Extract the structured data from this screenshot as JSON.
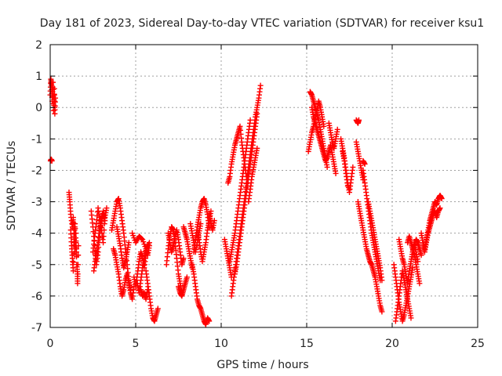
{
  "chart_data": {
    "type": "scatter",
    "title": "Day 181 of 2023, Sidereal Day-to-day VTEC variation (SDTVAR) for receiver ksu1",
    "xlabel": "GPS time / hours",
    "ylabel": "SDTVAR / TECUs",
    "xlim": [
      0,
      25
    ],
    "ylim": [
      -7,
      2
    ],
    "xticks": [
      "0",
      "5",
      "10",
      "15",
      "20",
      "25"
    ],
    "yticks": [
      "2",
      "1",
      "0",
      "-1",
      "-2",
      "-3",
      "-4",
      "-5",
      "-6",
      "-7"
    ],
    "grid": true,
    "marker": "+",
    "color": "#ff0000",
    "series": [
      {
        "name": "t0",
        "x": [
          0.0,
          0.04,
          0.08,
          0.12,
          0.16,
          0.2,
          0.24,
          0.27,
          0.3
        ],
        "y": [
          0.4,
          0.9,
          0.7,
          0.2,
          0.8,
          -0.1,
          0.6,
          -0.2,
          0.3
        ]
      },
      {
        "name": "t0b",
        "x": [
          0.02,
          0.06,
          0.1
        ],
        "y": [
          -1.7,
          -1.65,
          -1.7
        ]
      },
      {
        "name": "s1",
        "x": [
          1.1,
          1.15,
          1.2,
          1.3,
          1.35,
          1.4,
          1.45,
          1.5,
          1.55,
          1.6,
          1.6,
          1.65
        ],
        "y": [
          -2.7,
          -3.0,
          -3.4,
          -3.8,
          -3.5,
          -4.2,
          -4.6,
          -4.0,
          -5.0,
          -5.3,
          -5.6,
          -4.4
        ]
      },
      {
        "name": "s1b",
        "x": [
          1.2,
          1.25,
          1.3,
          1.35,
          1.4,
          1.45,
          1.5,
          1.55
        ],
        "y": [
          -3.9,
          -4.4,
          -4.8,
          -5.2,
          -4.1,
          -3.7,
          -4.3,
          -4.7
        ]
      },
      {
        "name": "s2",
        "x": [
          2.4,
          2.5,
          2.6,
          2.7,
          2.8,
          2.9,
          3.0,
          3.1,
          3.2
        ],
        "y": [
          -3.3,
          -3.8,
          -4.4,
          -5.0,
          -4.6,
          -4.0,
          -3.6,
          -3.3,
          -3.6
        ]
      },
      {
        "name": "s2b",
        "x": [
          2.5,
          2.6,
          2.7,
          2.8,
          2.9,
          3.0,
          3.1,
          3.2,
          3.3
        ],
        "y": [
          -4.6,
          -4.1,
          -3.7,
          -3.2,
          -3.6,
          -3.9,
          -4.3,
          -3.5,
          -3.2
        ]
      },
      {
        "name": "s2c",
        "x": [
          2.55,
          2.65,
          2.75,
          2.85,
          2.95,
          3.05
        ],
        "y": [
          -5.2,
          -4.8,
          -4.5,
          -4.0,
          -3.7,
          -3.4
        ]
      },
      {
        "name": "s3",
        "x": [
          3.6,
          3.7,
          3.8,
          3.9,
          4.0,
          4.1,
          4.2,
          4.3,
          4.4,
          4.5,
          4.6,
          4.7
        ],
        "y": [
          -3.9,
          -3.6,
          -3.3,
          -3.0,
          -2.9,
          -3.2,
          -3.6,
          -4.0,
          -4.5,
          -5.0,
          -5.5,
          -5.8
        ]
      },
      {
        "name": "s3b",
        "x": [
          3.7,
          3.8,
          3.9,
          4.0,
          4.1,
          4.2,
          4.3,
          4.4,
          4.5,
          4.6,
          4.7,
          4.8,
          4.9
        ],
        "y": [
          -4.5,
          -4.7,
          -5.0,
          -5.3,
          -5.7,
          -6.0,
          -5.8,
          -5.5,
          -5.3,
          -5.6,
          -5.9,
          -6.1,
          -5.7
        ]
      },
      {
        "name": "s3c",
        "x": [
          3.9,
          4.0,
          4.1,
          4.2,
          4.3,
          4.4,
          4.5,
          4.6
        ],
        "y": [
          -3.8,
          -4.1,
          -4.4,
          -4.8,
          -5.1,
          -4.9,
          -4.6,
          -4.3
        ]
      },
      {
        "name": "s4",
        "x": [
          4.8,
          5.0,
          5.2,
          5.4,
          5.6,
          5.8
        ],
        "y": [
          -4.0,
          -4.3,
          -4.1,
          -4.2,
          -4.5,
          -4.3
        ]
      },
      {
        "name": "s4b",
        "x": [
          4.9,
          5.0,
          5.1,
          5.2,
          5.3,
          5.4,
          5.5,
          5.6,
          5.7
        ],
        "y": [
          -5.4,
          -5.7,
          -5.3,
          -4.9,
          -4.6,
          -4.8,
          -5.1,
          -4.7,
          -4.4
        ]
      },
      {
        "name": "s4c",
        "x": [
          5.1,
          5.2,
          5.3,
          5.4,
          5.5,
          5.6,
          5.7,
          5.8
        ],
        "y": [
          -5.6,
          -5.9,
          -5.5,
          -5.1,
          -4.8,
          -4.5,
          -4.7,
          -4.4
        ]
      },
      {
        "name": "s5",
        "x": [
          5.6,
          5.7,
          5.8,
          5.9,
          6.0,
          6.1,
          6.2,
          6.3
        ],
        "y": [
          -5.2,
          -5.6,
          -6.0,
          -6.4,
          -6.7,
          -6.8,
          -6.6,
          -6.4
        ]
      },
      {
        "name": "s5b",
        "x": [
          5.3,
          5.4,
          5.5,
          5.6,
          5.7
        ],
        "y": [
          -5.8,
          -6.0,
          -5.9,
          -6.1,
          -5.8
        ]
      },
      {
        "name": "s6",
        "x": [
          6.8,
          6.9,
          7.0,
          7.1,
          7.2,
          7.3,
          7.4,
          7.5,
          7.6,
          7.7
        ],
        "y": [
          -5.0,
          -4.5,
          -4.1,
          -3.8,
          -3.9,
          -4.3,
          -4.8,
          -5.3,
          -5.6,
          -5.9
        ]
      },
      {
        "name": "s6b",
        "x": [
          6.9,
          7.0,
          7.1,
          7.2,
          7.3,
          7.4,
          7.5,
          7.6,
          7.7,
          7.8
        ],
        "y": [
          -4.0,
          -4.3,
          -4.6,
          -4.4,
          -4.1,
          -3.9,
          -4.2,
          -4.6,
          -5.0,
          -4.8
        ]
      },
      {
        "name": "s6c",
        "x": [
          7.8,
          7.9,
          8.0,
          8.1,
          8.2,
          8.3
        ],
        "y": [
          -3.8,
          -4.0,
          -4.2,
          -4.5,
          -4.8,
          -5.1
        ]
      },
      {
        "name": "s6d",
        "x": [
          7.5,
          7.6,
          7.7,
          7.8,
          7.9,
          8.0
        ],
        "y": [
          -5.7,
          -5.9,
          -6.0,
          -5.8,
          -5.6,
          -5.4
        ]
      },
      {
        "name": "s7",
        "x": [
          8.4,
          8.5,
          8.6,
          8.7,
          8.8,
          8.9,
          9.0,
          9.1,
          9.2,
          9.3
        ],
        "y": [
          -4.6,
          -4.2,
          -3.8,
          -3.5,
          -3.2,
          -3.0,
          -2.9,
          -3.1,
          -3.4,
          -3.8
        ]
      },
      {
        "name": "s7b",
        "x": [
          8.6,
          8.7,
          8.8,
          8.9,
          9.0,
          9.1,
          9.2,
          9.3,
          9.4
        ],
        "y": [
          -3.9,
          -4.2,
          -4.6,
          -4.9,
          -4.6,
          -4.3,
          -3.9,
          -3.6,
          -3.3
        ]
      },
      {
        "name": "s7c",
        "x": [
          8.2,
          8.3,
          8.4,
          8.5,
          8.6,
          8.7,
          8.8
        ],
        "y": [
          -3.7,
          -4.0,
          -4.3,
          -4.6,
          -4.3,
          -4.0,
          -3.7
        ]
      },
      {
        "name": "s8",
        "x": [
          8.3,
          8.4,
          8.5,
          8.6,
          8.7,
          8.8,
          8.9,
          9.0,
          9.1,
          9.2,
          9.3
        ],
        "y": [
          -5.0,
          -5.3,
          -5.7,
          -6.1,
          -6.3,
          -6.4,
          -6.6,
          -6.8,
          -6.9,
          -6.7,
          -6.8
        ]
      },
      {
        "name": "s8b",
        "x": [
          9.3,
          9.4,
          9.5,
          9.6
        ],
        "y": [
          -3.4,
          -3.7,
          -3.9,
          -3.6
        ]
      },
      {
        "name": "s9",
        "x": [
          10.4,
          10.5,
          10.6,
          10.7,
          10.8,
          10.9,
          11.0,
          11.1,
          11.2,
          11.3,
          11.4,
          11.5
        ],
        "y": [
          -2.4,
          -2.2,
          -1.8,
          -1.5,
          -1.2,
          -1.0,
          -0.8,
          -0.6,
          -1.1,
          -1.5,
          -1.9,
          -2.3
        ]
      },
      {
        "name": "s9b",
        "x": [
          10.5,
          10.6,
          10.7,
          10.8,
          10.9,
          11.0,
          11.1,
          11.2,
          11.3,
          11.4,
          11.5,
          11.6,
          11.7
        ],
        "y": [
          -4.9,
          -4.6,
          -4.3,
          -4.0,
          -3.6,
          -3.2,
          -2.8,
          -2.4,
          -2.0,
          -1.6,
          -1.2,
          -0.8,
          -0.4
        ]
      },
      {
        "name": "s9c",
        "x": [
          10.6,
          10.7,
          10.8,
          10.9,
          11.0,
          11.1,
          11.2,
          11.3,
          11.4,
          11.5,
          11.6,
          11.7,
          11.8,
          11.9,
          12.0,
          12.1,
          12.2,
          12.3
        ],
        "y": [
          -6.0,
          -5.6,
          -5.2,
          -4.8,
          -4.4,
          -4.0,
          -3.6,
          -3.2,
          -2.8,
          -2.3,
          -1.9,
          -1.5,
          -1.1,
          -0.7,
          -0.3,
          0.0,
          0.3,
          0.7
        ]
      },
      {
        "name": "s9d",
        "x": [
          10.8,
          10.9,
          11.0,
          11.1,
          11.2,
          11.3,
          11.4,
          11.5,
          11.6,
          11.7,
          11.8,
          11.9,
          12.0,
          12.1
        ],
        "y": [
          -5.3,
          -5.0,
          -4.6,
          -4.2,
          -3.8,
          -3.4,
          -3.0,
          -2.6,
          -2.2,
          -1.8,
          -1.4,
          -1.0,
          -0.6,
          -0.2
        ]
      },
      {
        "name": "s9e",
        "x": [
          11.6,
          11.7,
          11.8,
          11.9,
          12.0,
          12.1
        ],
        "y": [
          -3.0,
          -2.6,
          -2.2,
          -1.9,
          -1.6,
          -1.3
        ]
      },
      {
        "name": "s9f",
        "x": [
          10.2,
          10.3,
          10.4,
          10.5,
          10.6
        ],
        "y": [
          -4.2,
          -4.5,
          -4.8,
          -5.1,
          -5.4
        ]
      },
      {
        "name": "s10",
        "x": [
          15.2,
          15.3,
          15.4,
          15.5,
          15.6,
          15.7,
          15.8,
          15.9,
          16.0,
          16.1,
          16.2
        ],
        "y": [
          0.5,
          0.4,
          0.2,
          0.0,
          -0.2,
          -0.4,
          -0.7,
          -1.0,
          -1.3,
          -1.6,
          -1.9
        ]
      },
      {
        "name": "s10b",
        "x": [
          15.3,
          15.4,
          15.5,
          15.6,
          15.7,
          15.8,
          15.9,
          16.0,
          16.1,
          16.2,
          16.3,
          16.4,
          16.5,
          16.6,
          16.7
        ],
        "y": [
          0.0,
          -0.3,
          -0.5,
          -0.7,
          -0.9,
          -1.1,
          -1.3,
          -1.5,
          -1.7,
          -1.6,
          -1.4,
          -1.2,
          -1.5,
          -1.8,
          -2.1
        ]
      },
      {
        "name": "s10c",
        "x": [
          15.1,
          15.2,
          15.3,
          15.4,
          15.5,
          15.6,
          15.7,
          15.8,
          15.9,
          16.0
        ],
        "y": [
          -1.4,
          -1.1,
          -0.8,
          -0.6,
          -0.3,
          -0.1,
          0.2,
          0.0,
          -0.3,
          -0.6
        ]
      },
      {
        "name": "s10d",
        "x": [
          16.3,
          16.4,
          16.5,
          16.6,
          16.7,
          16.8
        ],
        "y": [
          -0.5,
          -0.8,
          -1.1,
          -1.3,
          -1.0,
          -0.7
        ]
      },
      {
        "name": "s11",
        "x": [
          17.0,
          17.1,
          17.2,
          17.3,
          17.4,
          17.5,
          17.6,
          17.7
        ],
        "y": [
          -1.0,
          -1.3,
          -1.6,
          -2.0,
          -2.4,
          -2.7,
          -2.3,
          -1.9
        ]
      },
      {
        "name": "s11b",
        "x": [
          17.1,
          17.2,
          17.3,
          17.4
        ],
        "y": [
          -1.4,
          -1.7,
          -2.1,
          -2.5
        ]
      },
      {
        "name": "s11c",
        "x": [
          17.9,
          18.0,
          18.05
        ],
        "y": [
          -0.4,
          -0.5,
          -0.4
        ]
      },
      {
        "name": "s11d",
        "x": [
          17.9,
          18.0,
          18.1,
          18.2,
          18.3
        ],
        "y": [
          -1.1,
          -1.4,
          -1.7,
          -2.0,
          -2.3
        ]
      },
      {
        "name": "s12",
        "x": [
          18.0,
          18.1,
          18.2,
          18.3,
          18.4,
          18.5,
          18.6,
          18.7,
          18.8,
          18.9,
          19.0,
          19.1,
          19.2,
          19.3,
          19.4
        ],
        "y": [
          -3.0,
          -3.3,
          -3.6,
          -3.9,
          -4.2,
          -4.5,
          -4.7,
          -4.9,
          -5.0,
          -5.2,
          -5.4,
          -5.7,
          -6.0,
          -6.3,
          -6.5
        ]
      },
      {
        "name": "s12b",
        "x": [
          18.3,
          18.4,
          18.5,
          18.6,
          18.7,
          18.8,
          18.9,
          19.0,
          19.1,
          19.2,
          19.3
        ],
        "y": [
          -2.0,
          -2.4,
          -2.8,
          -3.2,
          -3.6,
          -4.0,
          -4.3,
          -4.6,
          -4.9,
          -5.2,
          -5.5
        ]
      },
      {
        "name": "s12c",
        "x": [
          18.6,
          18.7,
          18.8,
          18.9,
          19.0,
          19.1,
          19.2,
          19.3,
          19.4
        ],
        "y": [
          -3.0,
          -3.3,
          -3.6,
          -3.9,
          -4.2,
          -4.5,
          -4.8,
          -5.1,
          -5.5
        ]
      },
      {
        "name": "s12d",
        "x": [
          18.3,
          18.4
        ],
        "y": [
          -1.7,
          -1.8
        ]
      },
      {
        "name": "s13",
        "x": [
          20.2,
          20.3,
          20.4,
          20.5,
          20.6,
          20.7,
          20.8,
          20.9,
          21.0,
          21.1
        ],
        "y": [
          -6.8,
          -6.4,
          -6.0,
          -5.6,
          -5.2,
          -5.5,
          -5.8,
          -6.1,
          -6.4,
          -6.7
        ]
      },
      {
        "name": "s13b",
        "x": [
          20.1,
          20.2,
          20.3,
          20.4,
          20.5,
          20.6,
          20.7,
          20.8,
          20.9,
          21.0,
          21.1,
          21.2
        ],
        "y": [
          -5.0,
          -5.4,
          -5.8,
          -6.2,
          -6.5,
          -6.8,
          -6.6,
          -6.3,
          -6.0,
          -5.7,
          -5.4,
          -5.1
        ]
      },
      {
        "name": "s13c",
        "x": [
          20.4,
          20.5,
          20.6,
          20.7,
          20.8,
          20.9,
          21.0,
          21.1,
          21.2,
          21.3,
          21.4,
          21.5
        ],
        "y": [
          -4.2,
          -4.5,
          -4.8,
          -5.0,
          -5.3,
          -5.6,
          -5.2,
          -4.9,
          -4.6,
          -4.3,
          -4.6,
          -4.9
        ]
      },
      {
        "name": "s13d",
        "x": [
          20.9,
          21.0,
          21.1,
          21.2,
          21.3,
          21.4,
          21.5,
          21.6
        ],
        "y": [
          -4.3,
          -4.1,
          -4.3,
          -4.5,
          -4.7,
          -5.0,
          -5.3,
          -5.6
        ]
      },
      {
        "name": "s14",
        "x": [
          21.7,
          21.8,
          21.9,
          22.0,
          22.1,
          22.2,
          22.3,
          22.4,
          22.5,
          22.6,
          22.7,
          22.8,
          22.9
        ],
        "y": [
          -4.0,
          -4.3,
          -4.5,
          -4.2,
          -3.9,
          -3.6,
          -3.4,
          -3.2,
          -3.0,
          -3.1,
          -2.9,
          -2.8,
          -2.9
        ]
      },
      {
        "name": "s14b",
        "x": [
          21.8,
          21.9,
          22.0,
          22.1,
          22.2,
          22.3,
          22.4,
          22.5,
          22.6,
          22.7,
          22.8
        ],
        "y": [
          -4.4,
          -4.6,
          -4.3,
          -4.0,
          -3.8,
          -3.6,
          -3.4,
          -3.3,
          -3.5,
          -3.3,
          -3.2
        ]
      },
      {
        "name": "s14c",
        "x": [
          21.2,
          21.3,
          21.4,
          21.5,
          21.6,
          21.7
        ],
        "y": [
          -4.6,
          -4.4,
          -4.2,
          -4.3,
          -4.5,
          -4.7
        ]
      }
    ]
  }
}
